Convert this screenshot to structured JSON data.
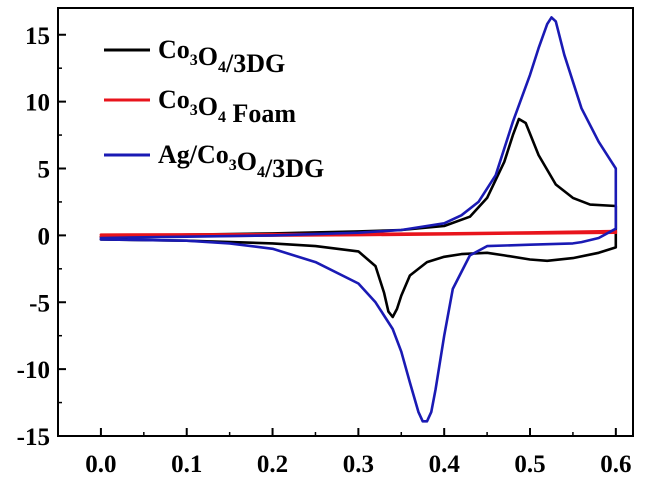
{
  "chart_data": {
    "type": "line",
    "title": "",
    "xlabel": "",
    "ylabel": "",
    "xlim": [
      -0.05,
      0.62
    ],
    "ylim": [
      -15,
      17
    ],
    "grid": false,
    "legend_position": "top-left",
    "x_ticks": [
      {
        "value": 0.0,
        "label": "0.0"
      },
      {
        "value": 0.1,
        "label": "0.1"
      },
      {
        "value": 0.2,
        "label": "0.2"
      },
      {
        "value": 0.3,
        "label": "0.3"
      },
      {
        "value": 0.4,
        "label": "0.4"
      },
      {
        "value": 0.5,
        "label": "0.5"
      },
      {
        "value": 0.6,
        "label": "0.6"
      }
    ],
    "y_ticks": [
      {
        "value": 15,
        "label": "15"
      },
      {
        "value": 10,
        "label": "10"
      },
      {
        "value": 5,
        "label": "5"
      },
      {
        "value": 0,
        "label": "0"
      },
      {
        "value": -5,
        "label": "-5"
      },
      {
        "value": -10,
        "label": "-10"
      },
      {
        "value": -15,
        "label": "-15"
      }
    ],
    "series": [
      {
        "name": "Co3O4/3DG",
        "legend_parts": [
          {
            "text": "Co",
            "sub": false
          },
          {
            "text": "3",
            "sub": true
          },
          {
            "text": "O",
            "sub": false
          },
          {
            "text": "4",
            "sub": true
          },
          {
            "text": "/3DG",
            "sub": false
          }
        ],
        "color": "#000000",
        "x": [
          0.0,
          0.1,
          0.2,
          0.3,
          0.35,
          0.4,
          0.43,
          0.45,
          0.47,
          0.48,
          0.487,
          0.495,
          0.51,
          0.53,
          0.55,
          0.57,
          0.6,
          0.6,
          0.58,
          0.55,
          0.52,
          0.5,
          0.47,
          0.45,
          0.42,
          0.4,
          0.38,
          0.36,
          0.35,
          0.345,
          0.34,
          0.335,
          0.33,
          0.32,
          0.3,
          0.25,
          0.2,
          0.1,
          0.0
        ],
        "y": [
          -0.1,
          0.05,
          0.15,
          0.3,
          0.4,
          0.7,
          1.4,
          2.8,
          5.5,
          7.5,
          8.7,
          8.4,
          6.0,
          3.8,
          2.8,
          2.3,
          2.2,
          -0.9,
          -1.3,
          -1.7,
          -1.9,
          -1.8,
          -1.5,
          -1.3,
          -1.4,
          -1.6,
          -2.0,
          -3.0,
          -4.5,
          -5.5,
          -6.1,
          -5.7,
          -4.3,
          -2.3,
          -1.2,
          -0.8,
          -0.6,
          -0.4,
          -0.3
        ]
      },
      {
        "name": "Co3O4 Foam",
        "legend_parts": [
          {
            "text": "Co",
            "sub": false
          },
          {
            "text": "3",
            "sub": true
          },
          {
            "text": "O",
            "sub": false
          },
          {
            "text": "4",
            "sub": true
          },
          {
            "text": " Foam",
            "sub": false
          }
        ],
        "color": "#e8141c",
        "x": [
          0.0,
          0.1,
          0.2,
          0.3,
          0.4,
          0.5,
          0.6,
          0.6,
          0.5,
          0.4,
          0.3,
          0.2,
          0.1,
          0.0
        ],
        "y": [
          0.05,
          0.07,
          0.09,
          0.11,
          0.15,
          0.22,
          0.32,
          0.2,
          0.15,
          0.08,
          0.02,
          -0.02,
          -0.06,
          -0.1
        ]
      },
      {
        "name": "Ag/Co3O4/3DG",
        "legend_parts": [
          {
            "text": "Ag/Co",
            "sub": false
          },
          {
            "text": "3",
            "sub": true
          },
          {
            "text": "O",
            "sub": false
          },
          {
            "text": "4",
            "sub": true
          },
          {
            "text": "/3DG",
            "sub": false
          }
        ],
        "color": "#1a1ab4",
        "x": [
          0.0,
          0.1,
          0.2,
          0.3,
          0.35,
          0.4,
          0.42,
          0.44,
          0.46,
          0.48,
          0.5,
          0.51,
          0.52,
          0.525,
          0.53,
          0.54,
          0.56,
          0.58,
          0.595,
          0.6,
          0.6,
          0.58,
          0.56,
          0.55,
          0.5,
          0.45,
          0.43,
          0.41,
          0.4,
          0.39,
          0.385,
          0.38,
          0.375,
          0.37,
          0.36,
          0.35,
          0.34,
          0.32,
          0.3,
          0.25,
          0.2,
          0.15,
          0.1,
          0.0
        ],
        "y": [
          -0.2,
          -0.1,
          0.0,
          0.2,
          0.4,
          0.9,
          1.5,
          2.5,
          4.5,
          8.5,
          12.0,
          14.0,
          15.8,
          16.3,
          16.0,
          13.5,
          9.5,
          7.0,
          5.5,
          5.0,
          0.5,
          -0.2,
          -0.5,
          -0.6,
          -0.7,
          -0.8,
          -1.5,
          -4.0,
          -7.5,
          -11.5,
          -13.2,
          -13.9,
          -13.9,
          -13.2,
          -11.0,
          -8.7,
          -7.0,
          -5.0,
          -3.6,
          -2.0,
          -1.0,
          -0.6,
          -0.4,
          -0.3
        ]
      }
    ]
  }
}
